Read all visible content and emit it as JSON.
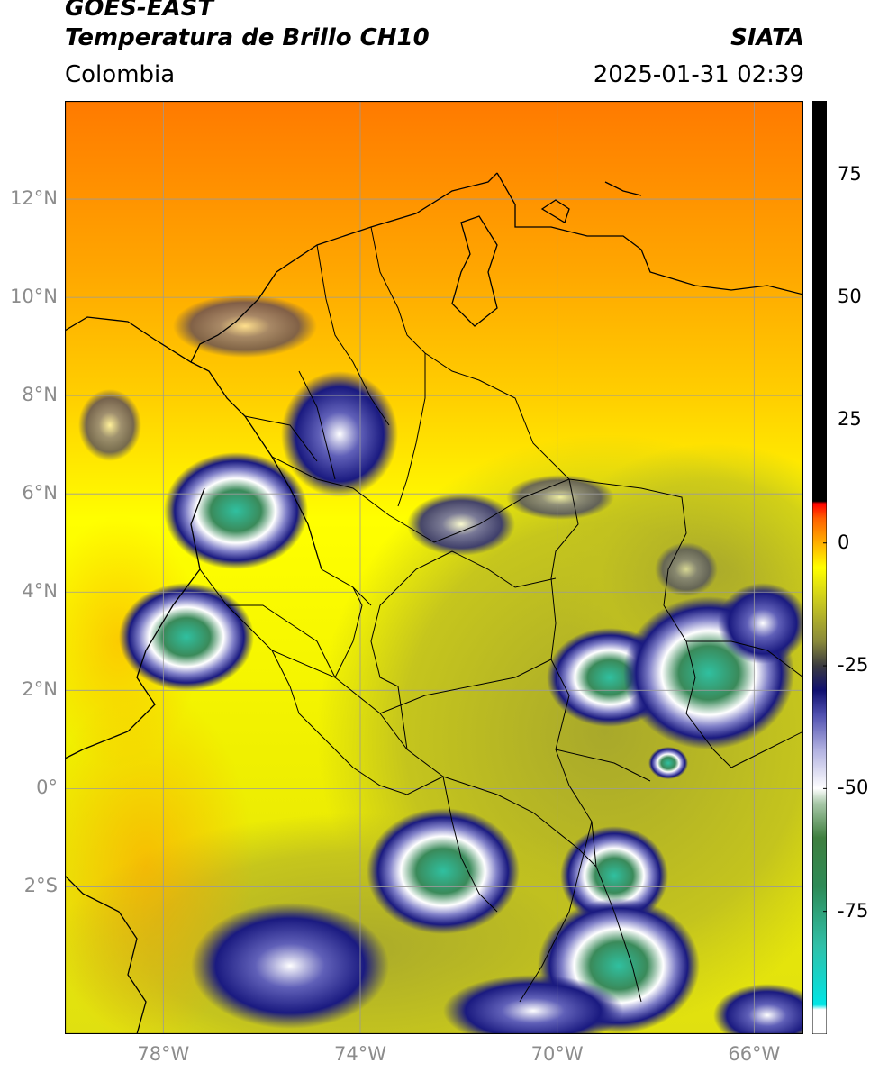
{
  "header": {
    "satellite": "GOES-EAST",
    "product": "Temperatura de Brillo CH10",
    "agency": "SIATA",
    "region": "Colombia",
    "datetime": "2025-01-31 02:39"
  },
  "map": {
    "lon_range": [
      -80,
      -65
    ],
    "lat_range": [
      -5,
      14
    ],
    "lat_ticks": [
      "12°N",
      "10°N",
      "8°N",
      "6°N",
      "4°N",
      "2°N",
      "0°",
      "2°S"
    ],
    "lon_ticks": [
      "78°W",
      "74°W",
      "70°W",
      "66°W"
    ]
  },
  "colorbar": {
    "range": [
      -100,
      90
    ],
    "ticks": [
      "75",
      "50",
      "25",
      "0",
      "-25",
      "-50",
      "-75"
    ],
    "tick_values": [
      75,
      50,
      25,
      0,
      -25,
      -50,
      -75
    ],
    "stops": [
      {
        "v": -100,
        "c": "#ffffff"
      },
      {
        "v": -95,
        "c": "#ffffff"
      },
      {
        "v": -94,
        "c": "#00e5e5"
      },
      {
        "v": -82,
        "c": "#30c0a8"
      },
      {
        "v": -70,
        "c": "#2e8b57"
      },
      {
        "v": -60,
        "c": "#3f7f3f"
      },
      {
        "v": -53,
        "c": "#a8c8a8"
      },
      {
        "v": -50,
        "c": "#ffffff"
      },
      {
        "v": -42,
        "c": "#b0b0e0"
      },
      {
        "v": -35,
        "c": "#5050b0"
      },
      {
        "v": -30,
        "c": "#101070"
      },
      {
        "v": -25,
        "c": "#3a3a40"
      },
      {
        "v": -20,
        "c": "#8a8a3a"
      },
      {
        "v": -12,
        "c": "#c8c820"
      },
      {
        "v": -5,
        "c": "#ffff00"
      },
      {
        "v": 0,
        "c": "#ffb000"
      },
      {
        "v": 5,
        "c": "#ff6000"
      },
      {
        "v": 8,
        "c": "#ff0000"
      },
      {
        "v": 8.5,
        "c": "#000000"
      },
      {
        "v": 90,
        "c": "#000000"
      }
    ]
  },
  "colors": {
    "cold_ocean": "#ff6a00",
    "warm_land": "#ffff00",
    "olive": "#b8b820",
    "deep_blue": "#1a1a80",
    "core_green": "#3a8a5a",
    "cyan": "#40c0a0"
  }
}
